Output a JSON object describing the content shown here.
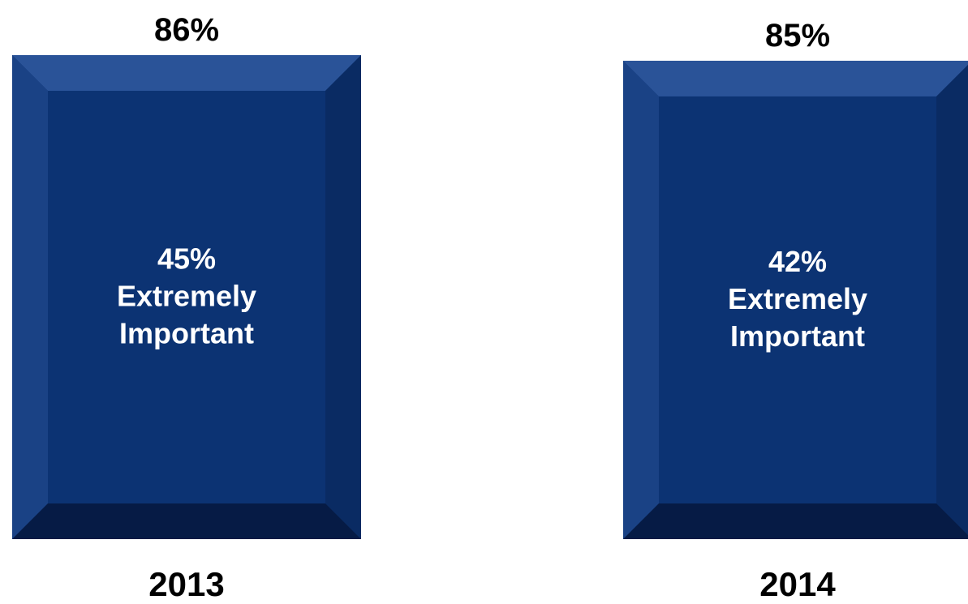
{
  "chart_data": {
    "type": "bar",
    "categories": [
      "2013",
      "2014"
    ],
    "series": [
      {
        "values": [
          86,
          85
        ],
        "value_labels": [
          "86%",
          "85%"
        ],
        "segment_values": [
          45,
          42
        ],
        "segment_labels": [
          [
            "45%",
            "Extremely",
            "Important"
          ],
          [
            "42%",
            "Extremely",
            "Important"
          ]
        ]
      }
    ],
    "ylim": [
      0,
      86
    ],
    "grid": false,
    "legend": "none",
    "colors": {
      "bar": "#0c3373",
      "bar_light": "#2a5398",
      "bar_dark": "#061b45",
      "label_text": "#ffffff"
    }
  }
}
